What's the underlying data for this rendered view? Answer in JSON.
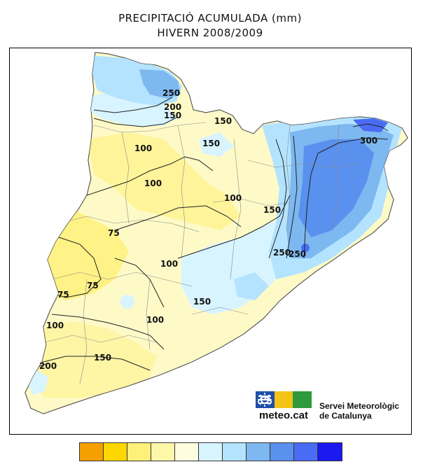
{
  "title": {
    "line1": "PRECIPITACIÓ ACUMULADA (mm)",
    "line2": "HIVERN 2008/2009"
  },
  "map": {
    "region": "Catalunya",
    "isolines": [
      "75",
      "75",
      "75",
      "100",
      "100",
      "100",
      "100",
      "100",
      "100",
      "150",
      "150",
      "150",
      "150",
      "150",
      "150",
      "200",
      "200",
      "250",
      "250",
      "250",
      "300"
    ]
  },
  "logo": {
    "text": "meteo.cat",
    "icons": [
      "waves-icon",
      "sun-icon",
      "cloud-icon"
    ]
  },
  "service": {
    "name": "Servei Meteorològic\nde Catalunya"
  },
  "legend": {
    "colors": [
      "#f5a000",
      "#ffd700",
      "#fff07a",
      "#fdf7aa",
      "#fffde0",
      "#d8f4ff",
      "#b4e3ff",
      "#7db8f0",
      "#5a90ee",
      "#4a6cf5",
      "#1a1af0"
    ]
  }
}
